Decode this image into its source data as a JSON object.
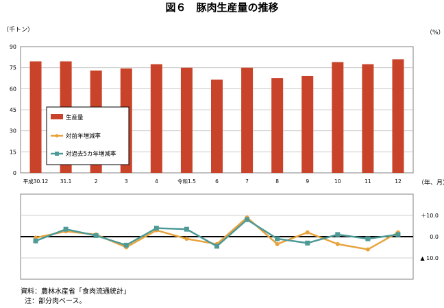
{
  "title": "図６　豚肉生産量の推移",
  "footnote": {
    "source": "資料：農林水産省「食肉流通統計」",
    "note": "注：部分肉ベース。"
  },
  "colors": {
    "bar": "#C9432A",
    "yoy": "#E8A33D",
    "vs5yr": "#4E9A96",
    "zero_line": "#000000",
    "grid": "#BFBFBF"
  },
  "chart_data": [
    {
      "type": "bar",
      "ylabel": "（千トン）",
      "xlabel": "（年、月）",
      "ylim": [
        0,
        90
      ],
      "yticks": [
        "0",
        "15",
        "30",
        "45",
        "60",
        "75",
        "90"
      ],
      "categories": [
        "平成30.12",
        "31.1",
        "2",
        "3",
        "4",
        "令和1.5",
        "6",
        "7",
        "8",
        "9",
        "10",
        "11",
        "12"
      ],
      "series": [
        {
          "name": "生産量",
          "values": [
            79.5,
            79.5,
            73,
            74.5,
            77.5,
            75,
            66.5,
            75,
            67.5,
            69,
            79,
            77.5,
            81
          ]
        }
      ],
      "legend": {
        "position": "inside-left"
      }
    },
    {
      "type": "line",
      "ylabel": "（%）",
      "ylim": [
        -20,
        20
      ],
      "yticks": [
        "＋10.0",
        "0.0",
        "▲ 10.0"
      ],
      "categories": [
        "平成30.12",
        "31.1",
        "2",
        "3",
        "4",
        "令和1.5",
        "6",
        "7",
        "8",
        "9",
        "10",
        "11",
        "12"
      ],
      "series": [
        {
          "name": "対前年増減率",
          "values": [
            -0.5,
            2.5,
            1.0,
            -5.0,
            3.0,
            -1.0,
            -3.5,
            9.0,
            -3.5,
            2.0,
            -3.5,
            -6.0,
            2.0
          ]
        },
        {
          "name": "対過去5カ年増減率",
          "values": [
            -2.0,
            3.5,
            0.5,
            -4.0,
            4.0,
            3.5,
            -4.5,
            8.0,
            -1.0,
            -3.0,
            1.0,
            -1.0,
            1.0
          ]
        }
      ],
      "legend": {
        "position": "inside-left"
      }
    }
  ]
}
